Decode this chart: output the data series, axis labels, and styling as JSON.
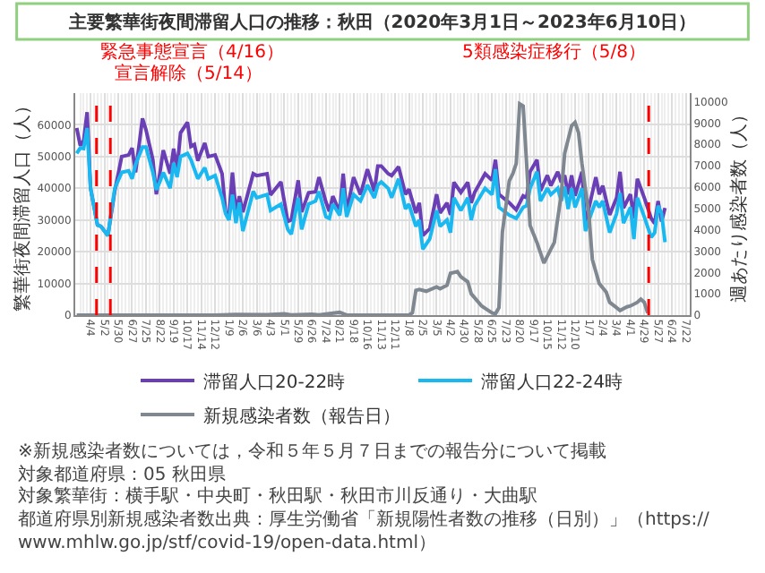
{
  "chart_data": {
    "type": "line",
    "title": "主要繁華街夜間滞留人口の推移：秋田（2020年3月1日～2023年6月10日）",
    "ylabel": "繁華街夜間滞留人口（人）",
    "y2label": "週あたり感染者数（人）",
    "x": [
      "2020-03-07",
      "2020-03-14",
      "2020-03-21",
      "2020-03-28",
      "2020-04-04",
      "2020-04-18",
      "2020-04-25",
      "2020-05-09",
      "2020-05-23",
      "2020-06-06",
      "2020-06-20",
      "2020-06-27",
      "2020-07-04",
      "2020-07-18",
      "2020-07-25",
      "2020-08-08",
      "2020-08-15",
      "2020-08-22",
      "2020-08-29",
      "2020-09-12",
      "2020-09-19",
      "2020-09-26",
      "2020-10-03",
      "2020-10-17",
      "2020-10-24",
      "2020-10-31",
      "2020-11-07",
      "2020-11-21",
      "2020-11-28",
      "2020-12-12",
      "2020-12-26",
      "2021-01-02",
      "2021-01-09",
      "2021-01-16",
      "2021-01-23",
      "2021-01-30",
      "2021-02-06",
      "2021-02-27",
      "2021-03-06",
      "2021-03-27",
      "2021-04-03",
      "2021-04-24",
      "2021-05-08",
      "2021-05-15",
      "2021-05-29",
      "2021-06-05",
      "2021-06-19",
      "2021-07-03",
      "2021-07-10",
      "2021-07-24",
      "2021-07-31",
      "2021-08-07",
      "2021-08-21",
      "2021-08-28",
      "2021-09-04",
      "2021-09-18",
      "2021-10-02",
      "2021-10-16",
      "2021-10-30",
      "2021-11-06",
      "2021-11-13",
      "2021-11-27",
      "2021-12-04",
      "2021-12-18",
      "2022-01-01",
      "2022-01-08",
      "2022-01-22",
      "2022-01-29",
      "2022-02-05",
      "2022-02-19",
      "2022-03-05",
      "2022-03-12",
      "2022-03-26",
      "2022-04-02",
      "2022-04-09",
      "2022-04-23",
      "2022-05-07",
      "2022-05-14",
      "2022-05-21",
      "2022-06-11",
      "2022-06-25",
      "2022-07-02",
      "2022-07-09",
      "2022-07-30",
      "2022-08-13",
      "2022-08-27",
      "2022-09-03",
      "2022-09-10",
      "2022-09-24",
      "2022-10-01",
      "2022-10-15",
      "2022-10-22",
      "2022-11-05",
      "2022-11-12",
      "2022-11-19",
      "2022-11-26",
      "2022-12-03",
      "2022-12-10",
      "2022-12-24",
      "2022-12-31",
      "2023-01-07",
      "2023-01-21",
      "2023-01-28",
      "2023-02-04",
      "2023-02-18",
      "2023-03-04",
      "2023-03-11",
      "2023-03-18",
      "2023-04-01",
      "2023-04-08",
      "2023-04-15",
      "2023-04-29",
      "2023-05-13",
      "2023-05-20",
      "2023-05-27",
      "2023-06-03",
      "2023-06-10"
    ],
    "series": [
      {
        "name": "滞留人口20-22時",
        "color": "#6a3fb5",
        "values": [
          59000,
          53500,
          55000,
          64000,
          40000,
          28400,
          28000,
          25100,
          39200,
          50000,
          50500,
          52700,
          45000,
          62000,
          58500,
          49000,
          38100,
          44600,
          52000,
          44600,
          52500,
          46000,
          57500,
          60800,
          53200,
          53800,
          48700,
          54300,
          50000,
          50500,
          44600,
          32700,
          31600,
          45000,
          32500,
          37500,
          32500,
          44600,
          44000,
          44600,
          37900,
          42000,
          29500,
          30000,
          42500,
          32500,
          38600,
          38900,
          43500,
          35700,
          32700,
          37500,
          32500,
          44600,
          32500,
          43500,
          38000,
          46000,
          39000,
          47000,
          47000,
          44600,
          44000,
          46800,
          38100,
          39700,
          32200,
          35400,
          25100,
          27300,
          38100,
          32200,
          35400,
          31600,
          41900,
          38700,
          41900,
          35400,
          38700,
          44600,
          42500,
          49000,
          38100,
          35400,
          33200,
          37600,
          37000,
          45200,
          49000,
          39200,
          44100,
          40800,
          45200,
          41900,
          44100,
          38100,
          44100,
          37600,
          45200,
          28400,
          33800,
          43500,
          38100,
          40800,
          31600,
          37000,
          45200,
          33800,
          38100,
          30500,
          43000,
          37000,
          30500,
          28900,
          36000,
          29500,
          33800
        ]
      },
      {
        "name": "滞留人口22-24時",
        "color": "#1ab8f0",
        "values": [
          51000,
          52700,
          52500,
          59000,
          40000,
          28400,
          28000,
          25000,
          40000,
          45000,
          45500,
          43000,
          47500,
          53000,
          53000,
          45000,
          39500,
          42000,
          45000,
          40000,
          48000,
          43500,
          50000,
          51000,
          49000,
          46000,
          43000,
          46500,
          43000,
          44000,
          37000,
          32000,
          30000,
          38000,
          29000,
          35500,
          26500,
          39000,
          37000,
          38000,
          33000,
          35000,
          27000,
          25500,
          37000,
          27000,
          35000,
          36000,
          39000,
          31000,
          30500,
          35000,
          31500,
          40000,
          31000,
          38000,
          36000,
          41000,
          37000,
          41000,
          42000,
          40000,
          37000,
          43000,
          33500,
          35000,
          28000,
          30000,
          20800,
          24000,
          33000,
          28000,
          30000,
          26000,
          37000,
          33000,
          37000,
          30000,
          34500,
          40000,
          38000,
          46000,
          34000,
          31500,
          30500,
          34000,
          34500,
          40000,
          45200,
          36000,
          40000,
          38000,
          40000,
          36000,
          40500,
          33500,
          40000,
          34000,
          40000,
          26500,
          30000,
          36000,
          34000,
          36000,
          26000,
          32000,
          38500,
          29000,
          34000,
          24000,
          37000,
          31000,
          24500,
          26000,
          34500,
          32000,
          23000
        ]
      },
      {
        "name": "新規感染者数（報告日）",
        "color": "#7f8790",
        "axis": "y2",
        "x": [
          "2020-03-07",
          "2020-12-12",
          "2021-01-23",
          "2021-03-27",
          "2021-05-01",
          "2021-05-15",
          "2021-06-26",
          "2021-07-10",
          "2021-08-21",
          "2021-09-04",
          "2021-11-27",
          "2022-01-08",
          "2022-01-15",
          "2022-01-22",
          "2022-01-29",
          "2022-02-12",
          "2022-03-05",
          "2022-03-12",
          "2022-03-26",
          "2022-04-02",
          "2022-04-16",
          "2022-04-23",
          "2022-05-07",
          "2022-05-14",
          "2022-06-04",
          "2022-06-11",
          "2022-06-25",
          "2022-07-02",
          "2022-07-09",
          "2022-07-16",
          "2022-07-30",
          "2022-08-06",
          "2022-08-13",
          "2022-08-20",
          "2022-08-27",
          "2022-09-03",
          "2022-09-10",
          "2022-09-24",
          "2022-10-08",
          "2022-10-15",
          "2022-10-22",
          "2022-10-29",
          "2022-11-12",
          "2022-11-19",
          "2022-12-03",
          "2022-12-10",
          "2022-12-17",
          "2022-12-24",
          "2023-01-07",
          "2023-01-14",
          "2023-01-28",
          "2023-02-11",
          "2023-02-18",
          "2023-03-04",
          "2023-03-11",
          "2023-03-25",
          "2023-04-01",
          "2023-04-15",
          "2023-04-22",
          "2023-04-29",
          "2023-05-06"
        ],
        "values": [
          0,
          0,
          30,
          20,
          60,
          10,
          40,
          10,
          130,
          10,
          0,
          0,
          110,
          1160,
          1200,
          1120,
          1320,
          1240,
          1400,
          1960,
          2040,
          1800,
          1560,
          1000,
          430,
          320,
          110,
          60,
          350,
          3890,
          6300,
          6620,
          7100,
          9900,
          9800,
          7100,
          4200,
          3400,
          2440,
          2760,
          3090,
          3400,
          5650,
          7580,
          8870,
          9030,
          8550,
          7100,
          4690,
          2600,
          1480,
          1080,
          600,
          350,
          220,
          390,
          430,
          600,
          750,
          600,
          100
        ]
      }
    ],
    "xlim": [
      "2020-03-04",
      "2023-07-30"
    ],
    "xticks": [
      {
        "value": "2020-04-04",
        "label": "4/4"
      },
      {
        "value": "2020-05-02",
        "label": "5/2"
      },
      {
        "value": "2020-05-30",
        "label": "5/30"
      },
      {
        "value": "2020-06-27",
        "label": "6/27"
      },
      {
        "value": "2020-07-25",
        "label": "7/25"
      },
      {
        "value": "2020-08-22",
        "label": "8/22"
      },
      {
        "value": "2020-09-19",
        "label": "9/19"
      },
      {
        "value": "2020-10-17",
        "label": "10/17"
      },
      {
        "value": "2020-11-14",
        "label": "11/14"
      },
      {
        "value": "2020-12-12",
        "label": "12/12"
      },
      {
        "value": "2021-01-09",
        "label": "1/9"
      },
      {
        "value": "2021-02-06",
        "label": "2/6"
      },
      {
        "value": "2021-03-06",
        "label": "3/6"
      },
      {
        "value": "2021-04-03",
        "label": "4/3"
      },
      {
        "value": "2021-05-01",
        "label": "5/1"
      },
      {
        "value": "2021-05-29",
        "label": "5/29"
      },
      {
        "value": "2021-06-26",
        "label": "6/26"
      },
      {
        "value": "2021-07-24",
        "label": "7/24"
      },
      {
        "value": "2021-08-21",
        "label": "8/21"
      },
      {
        "value": "2021-09-18",
        "label": "9/18"
      },
      {
        "value": "2021-10-16",
        "label": "10/16"
      },
      {
        "value": "2021-11-13",
        "label": "11/13"
      },
      {
        "value": "2021-12-11",
        "label": "12/11"
      },
      {
        "value": "2022-01-08",
        "label": "1/8"
      },
      {
        "value": "2022-02-05",
        "label": "2/5"
      },
      {
        "value": "2022-03-05",
        "label": "3/5"
      },
      {
        "value": "2022-04-02",
        "label": "4/2"
      },
      {
        "value": "2022-04-30",
        "label": "4/30"
      },
      {
        "value": "2022-05-28",
        "label": "5/28"
      },
      {
        "value": "2022-06-25",
        "label": "6/25"
      },
      {
        "value": "2022-07-23",
        "label": "7/23"
      },
      {
        "value": "2022-08-20",
        "label": "8/20"
      },
      {
        "value": "2022-09-17",
        "label": "9/17"
      },
      {
        "value": "2022-10-15",
        "label": "10/15"
      },
      {
        "value": "2022-11-12",
        "label": "11/12"
      },
      {
        "value": "2022-12-10",
        "label": "12/10"
      },
      {
        "value": "2023-01-07",
        "label": "1/7"
      },
      {
        "value": "2023-02-04",
        "label": "2/4"
      },
      {
        "value": "2023-03-04",
        "label": "3/4"
      },
      {
        "value": "2023-04-01",
        "label": "4/1"
      },
      {
        "value": "2023-04-29",
        "label": "4/29"
      },
      {
        "value": "2023-05-27",
        "label": "5/27"
      },
      {
        "value": "2023-06-24",
        "label": "6/24"
      },
      {
        "value": "2023-07-22",
        "label": "7/22"
      }
    ],
    "ylim": [
      0,
      70000
    ],
    "yticks": [
      0,
      10000,
      20000,
      30000,
      40000,
      50000,
      60000
    ],
    "y2lim": [
      0,
      10400
    ],
    "y2ticks": [
      0,
      1000,
      2000,
      3000,
      4000,
      5000,
      6000,
      7000,
      8000,
      9000,
      10000
    ],
    "ref_lines": [
      {
        "axis": "x",
        "value": "2020-04-16",
        "label": "緊急事態宣言（4/16）",
        "color": "#ff0000",
        "line_style": "dashed"
      },
      {
        "axis": "x",
        "value": "2020-05-14",
        "label": "宣言解除（5/14）",
        "color": "#ff0000",
        "line_style": "dashed"
      },
      {
        "axis": "x",
        "value": "2023-05-08",
        "label": "5類感染症移行（5/8）",
        "color": "#ff0000",
        "line_style": "dashed"
      }
    ],
    "grid": true,
    "legend": "bottom",
    "annotations": [
      "※新規感染者数については，令和５年５月７日までの報告分について掲載",
      "対象都道府県：05 秋田県",
      "対象繁華街：横手駅・中央町・秋田駅・秋田市川反通り・大曲駅",
      "都道府県別新規感染者数出典：厚生労働省「新規陽性者数の推移（日別）」（https://www.mhlw.go.jp/stf/covid-19/open-data.html）"
    ]
  }
}
